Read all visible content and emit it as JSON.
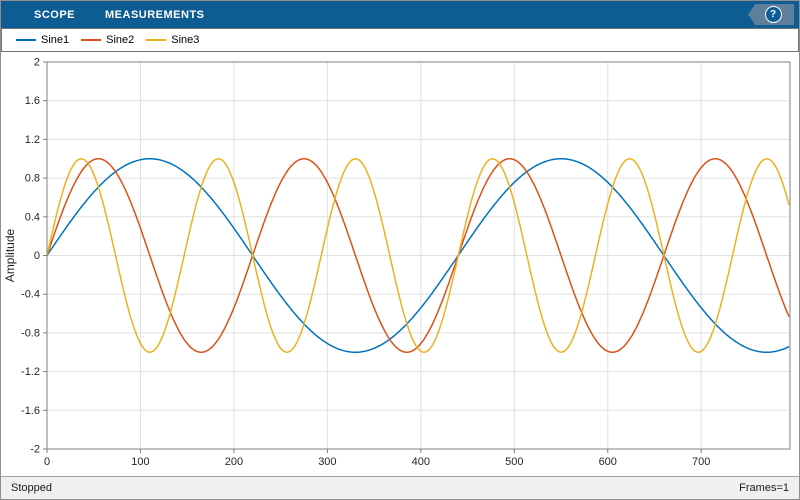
{
  "toolbar": {
    "tabs": [
      {
        "label": "SCOPE"
      },
      {
        "label": "MEASUREMENTS"
      }
    ],
    "help_label": "?"
  },
  "legend": {
    "items": [
      {
        "label": "Sine1",
        "color": "#0072BD"
      },
      {
        "label": "Sine2",
        "color": "#D95319"
      },
      {
        "label": "Sine3",
        "color": "#EDB120"
      }
    ]
  },
  "statusbar": {
    "left": "Stopped",
    "right": "Frames=1"
  },
  "chart_data": {
    "type": "line",
    "title": "",
    "xlabel": "",
    "ylabel": "Amplitude",
    "xlim": [
      0,
      795
    ],
    "ylim": [
      -2,
      2
    ],
    "x_ticks": [
      0,
      100,
      200,
      300,
      400,
      500,
      600,
      700
    ],
    "y_ticks": [
      -2,
      -1.6,
      -1.2,
      -0.8,
      -0.4,
      0,
      0.4,
      0.8,
      1.2,
      1.6,
      2
    ],
    "grid": true,
    "legend_position": "top-strip",
    "series": [
      {
        "name": "Sine1",
        "color": "#0072BD",
        "waveform": "sine",
        "amplitude": 1,
        "period": 440,
        "phase_deg": 0
      },
      {
        "name": "Sine2",
        "color": "#D95319",
        "waveform": "sine",
        "amplitude": 1,
        "period": 220,
        "phase_deg": 0
      },
      {
        "name": "Sine3",
        "color": "#EDB120",
        "waveform": "sine",
        "amplitude": 1,
        "period": 146.7,
        "phase_deg": 0
      }
    ],
    "colors": {
      "grid": "#e0e0e0",
      "axis": "#7f7f7f",
      "tick_label": "#262626",
      "toolbar_bg": "#0d5c94"
    }
  }
}
